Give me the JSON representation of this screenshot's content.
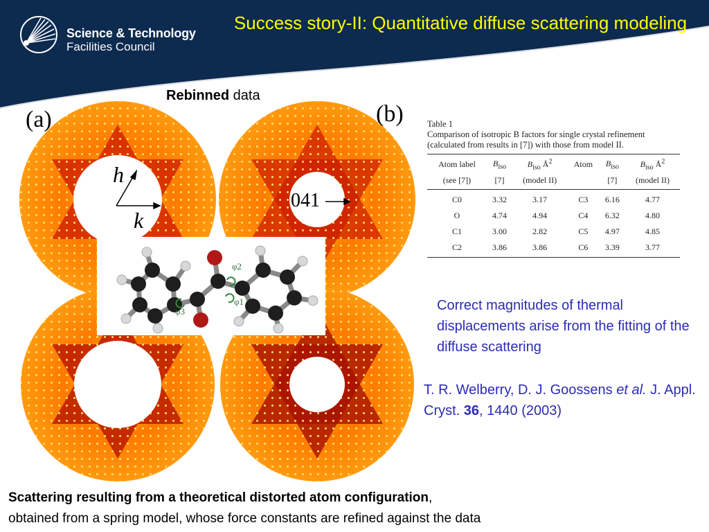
{
  "header": {
    "org_line1": "Science & Technology",
    "org_line2": "Facilities Council",
    "title": "Success story-II: Quantitative diffuse scattering modeling",
    "colors": {
      "navy": "#0d2a4f",
      "title": "#ffff00"
    }
  },
  "figure": {
    "subtitle_bold": "Rebinned",
    "subtitle_rest": " data",
    "panel_a": "(a)",
    "panel_b": "(b)",
    "axis_h": "h",
    "axis_k": "k",
    "reflection": "041",
    "phi_labels": [
      "φ2",
      "φ1",
      "φ3"
    ]
  },
  "table": {
    "caption": [
      "Table 1",
      "Comparison of isotropic B factors for single crystal refinement",
      "(calculated from results in [7]) with those from model II."
    ],
    "header1": [
      "Atom label",
      "B",
      "iso",
      "B",
      "iso",
      " Å",
      "2",
      "Atom",
      "B",
      "iso",
      "B",
      "iso",
      " Å",
      "2"
    ],
    "header2": [
      "(see [7])",
      "[7]",
      "(model II)",
      "",
      "[7]",
      "(model II)"
    ],
    "rows": [
      [
        "C0",
        "3.32",
        "3.17",
        "C3",
        "6.16",
        "4.77"
      ],
      [
        "O",
        "4.74",
        "4.94",
        "C4",
        "6.32",
        "4.80"
      ],
      [
        "C1",
        "3.00",
        "2.82",
        "C5",
        "4.97",
        "4.85"
      ],
      [
        "C2",
        "3.86",
        "3.86",
        "C6",
        "3.39",
        "3.77"
      ]
    ]
  },
  "info_text": "Correct magnitudes of thermal displacements arise from the fitting of the diffuse scattering",
  "citation": {
    "authors": "T. R. Welberry, D. J. Goossens ",
    "etal": "et al.",
    "journal": " J. Appl. Cryst. ",
    "volume": "36",
    "rest": ", 1440 (2003)"
  },
  "bottom": {
    "line1_bold": "Scattering resulting from a theoretical distorted atom configuration",
    "line1_rest": ",",
    "line2": "obtained from a spring model, whose force constants are refined  against the data"
  }
}
